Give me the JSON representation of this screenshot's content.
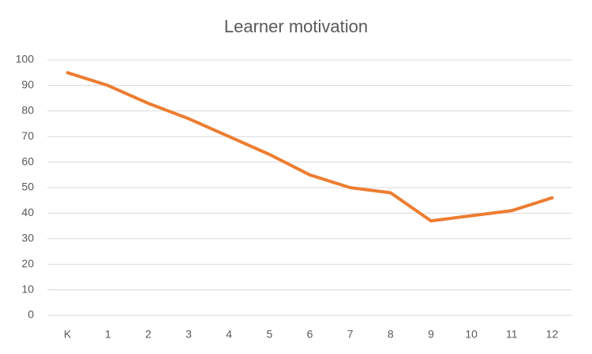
{
  "chart_data": {
    "type": "line",
    "title": "Learner motivation",
    "categories": [
      "K",
      "1",
      "2",
      "3",
      "4",
      "5",
      "6",
      "7",
      "8",
      "9",
      "10",
      "11",
      "12"
    ],
    "values": [
      95,
      90,
      83,
      77,
      70,
      63,
      55,
      50,
      48,
      37,
      39,
      41,
      46
    ],
    "color": "#ed7d31",
    "ylim": [
      0,
      100
    ],
    "yticks": [
      0,
      10,
      20,
      30,
      40,
      50,
      60,
      70,
      80,
      90,
      100
    ],
    "grid": true
  }
}
